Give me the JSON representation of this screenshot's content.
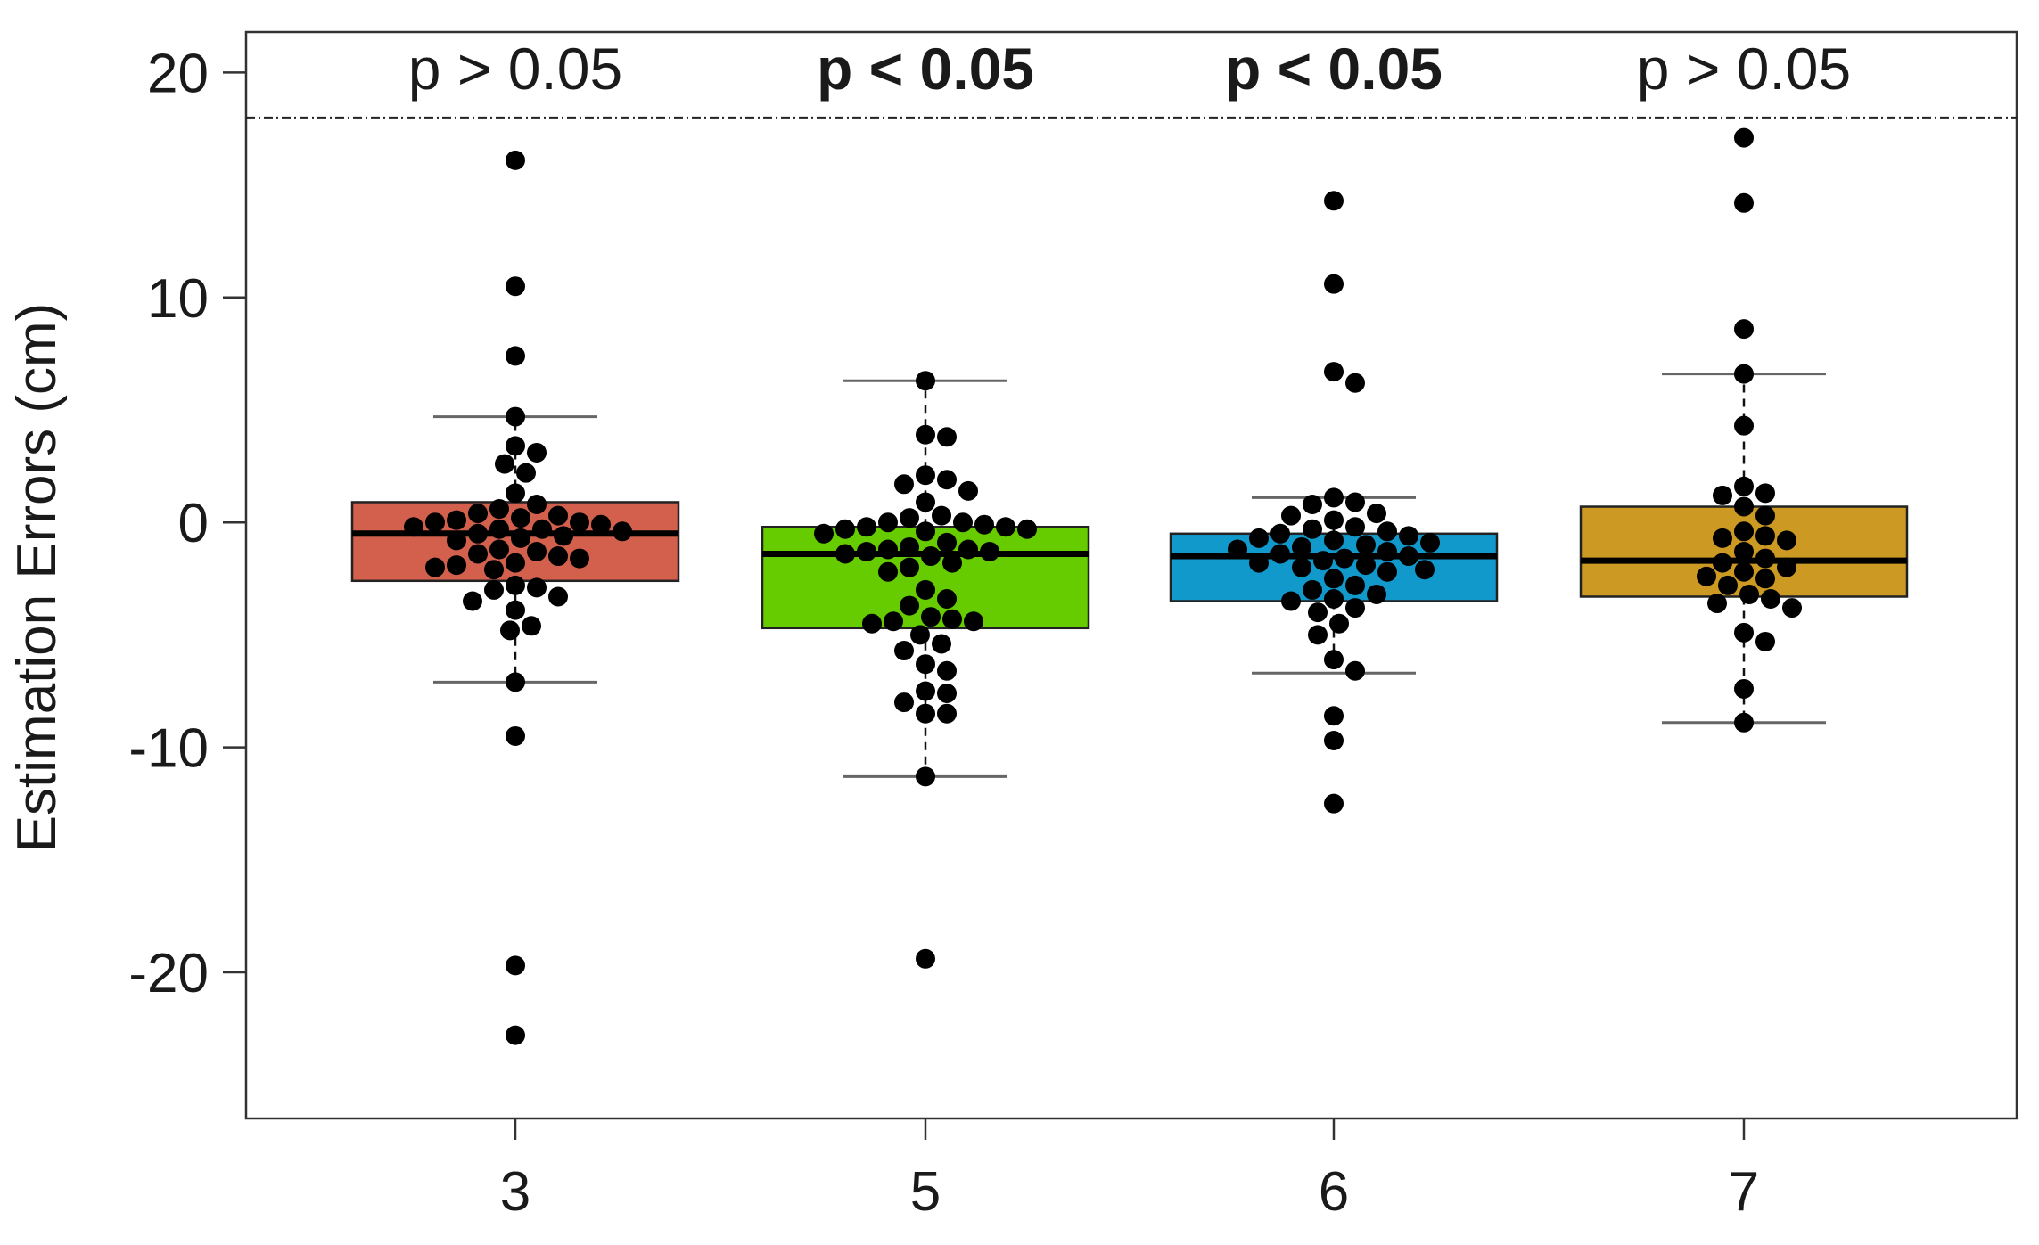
{
  "chart_data": {
    "type": "box",
    "categories": [
      "3",
      "5",
      "6",
      "7"
    ],
    "ylabel": "Estimation Errors (cm)",
    "xlabel": "",
    "ylim": [
      -26.5,
      21.8
    ],
    "yticks": [
      -20,
      -10,
      0,
      10,
      20
    ],
    "yticklabels": [
      "-20",
      "-10",
      "0",
      "10",
      "20"
    ],
    "reference_line_y": 18,
    "annotations": [
      {
        "text": "p > 0.05",
        "bold": false
      },
      {
        "text": "p < 0.05",
        "bold": true
      },
      {
        "text": "p < 0.05",
        "bold": true
      },
      {
        "text": "p > 0.05",
        "bold": false
      }
    ],
    "boxes": [
      {
        "category": "3",
        "color": "#d2604c",
        "whisker_low": -7.1,
        "q1": -2.6,
        "median": -0.5,
        "q3": 0.9,
        "whisker_high": 4.7
      },
      {
        "category": "5",
        "color": "#66cc00",
        "whisker_low": -11.3,
        "q1": -4.7,
        "median": -1.4,
        "q3": -0.2,
        "whisker_high": 6.3
      },
      {
        "category": "6",
        "color": "#1199cc",
        "whisker_low": -6.7,
        "q1": -3.5,
        "median": -1.5,
        "q3": -0.5,
        "whisker_high": 1.1
      },
      {
        "category": "7",
        "color": "#cc9922",
        "whisker_low": -8.9,
        "q1": -3.3,
        "median": -1.7,
        "q3": 0.7,
        "whisker_high": 6.6
      }
    ],
    "points": [
      {
        "category": "3",
        "values": [
          16.1,
          10.5,
          7.4,
          4.7,
          3.4,
          3.1,
          2.6,
          2.2,
          1.3,
          0.8,
          0.6,
          0.4,
          0.3,
          0.2,
          0.1,
          0.0,
          0.0,
          -0.1,
          -0.2,
          -0.3,
          -0.3,
          -0.4,
          -0.5,
          -0.6,
          -0.7,
          -0.8,
          -1.2,
          -1.3,
          -1.4,
          -1.5,
          -1.6,
          -1.8,
          -1.9,
          -2.0,
          -2.1,
          -2.8,
          -2.9,
          -3.0,
          -3.3,
          -3.5,
          -3.9,
          -4.6,
          -4.8,
          -7.1,
          -9.5,
          -19.7,
          -22.8
        ]
      },
      {
        "category": "5",
        "values": [
          6.3,
          3.9,
          3.8,
          2.1,
          1.9,
          1.7,
          1.4,
          0.9,
          0.3,
          0.2,
          0.0,
          0.0,
          -0.1,
          -0.2,
          -0.2,
          -0.3,
          -0.3,
          -0.4,
          -0.5,
          -0.9,
          -1.1,
          -1.2,
          -1.2,
          -1.3,
          -1.3,
          -1.4,
          -1.5,
          -1.8,
          -2.0,
          -2.2,
          -3.0,
          -3.4,
          -3.7,
          -4.2,
          -4.3,
          -4.4,
          -4.4,
          -4.5,
          -5.0,
          -5.4,
          -5.7,
          -6.3,
          -6.6,
          -7.5,
          -7.6,
          -8.0,
          -8.5,
          -8.5,
          -11.3,
          -19.4
        ]
      },
      {
        "category": "6",
        "values": [
          14.3,
          10.6,
          6.7,
          6.2,
          1.1,
          0.9,
          0.8,
          0.4,
          0.3,
          0.1,
          -0.2,
          -0.3,
          -0.4,
          -0.5,
          -0.6,
          -0.7,
          -0.8,
          -0.9,
          -1.0,
          -1.1,
          -1.2,
          -1.3,
          -1.4,
          -1.5,
          -1.6,
          -1.7,
          -1.8,
          -1.9,
          -2.0,
          -2.1,
          -2.2,
          -2.5,
          -2.8,
          -3.0,
          -3.2,
          -3.4,
          -3.5,
          -3.8,
          -4.0,
          -4.5,
          -5.0,
          -6.1,
          -6.6,
          -8.6,
          -9.7,
          -12.5
        ]
      },
      {
        "category": "7",
        "values": [
          17.1,
          14.2,
          8.6,
          6.6,
          4.3,
          1.6,
          1.3,
          1.2,
          0.7,
          0.3,
          -0.4,
          -0.6,
          -0.7,
          -0.8,
          -1.3,
          -1.6,
          -1.8,
          -2.0,
          -2.2,
          -2.4,
          -2.5,
          -2.8,
          -3.2,
          -3.4,
          -3.6,
          -3.8,
          -4.9,
          -5.3,
          -7.4,
          -8.9
        ]
      }
    ],
    "grid": false,
    "legend": "none"
  }
}
